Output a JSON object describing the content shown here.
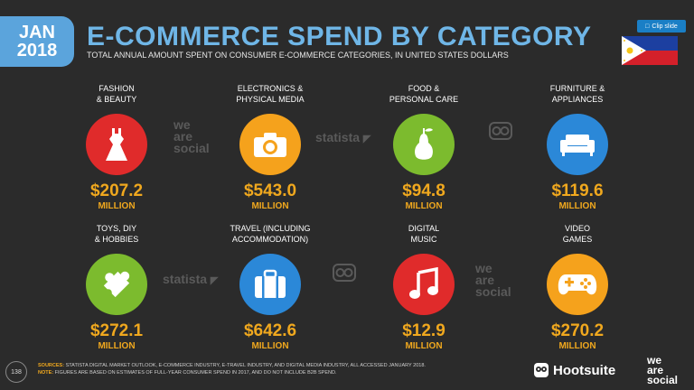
{
  "badge": {
    "month": "JAN",
    "year": "2018",
    "color": "#5ba4dc"
  },
  "title": "E-COMMERCE SPEND BY CATEGORY",
  "subtitle": "TOTAL ANNUAL AMOUNT SPENT ON CONSUMER E-COMMERCE CATEGORIES, IN UNITED STATES DOLLARS",
  "clip_button": "Clip slide",
  "country_flag": "philippines-flag",
  "accent_color": "#f0a81e",
  "categories": [
    {
      "label_1": "FASHION",
      "label_2": "& BEAUTY",
      "value": "$207.2",
      "unit": "MILLION",
      "icon": "dress-icon",
      "color": "#e02b2b"
    },
    {
      "label_1": "ELECTRONICS &",
      "label_2": "PHYSICAL MEDIA",
      "value": "$543.0",
      "unit": "MILLION",
      "icon": "camera-icon",
      "color": "#f5a21c"
    },
    {
      "label_1": "FOOD &",
      "label_2": "PERSONAL CARE",
      "value": "$94.8",
      "unit": "MILLION",
      "icon": "pear-icon",
      "color": "#7cbb2e"
    },
    {
      "label_1": "FURNITURE &",
      "label_2": "APPLIANCES",
      "value": "$119.6",
      "unit": "MILLION",
      "icon": "sofa-icon",
      "color": "#2b88d8"
    },
    {
      "label_1": "TOYS, DIY",
      "label_2": "& HOBBIES",
      "value": "$272.1",
      "unit": "MILLION",
      "icon": "puzzle-icon",
      "color": "#7cbb2e"
    },
    {
      "label_1": "TRAVEL (INCLUDING",
      "label_2": "ACCOMMODATION)",
      "value": "$642.6",
      "unit": "MILLION",
      "icon": "suitcase-icon",
      "color": "#2b88d8"
    },
    {
      "label_1": "DIGITAL",
      "label_2": "MUSIC",
      "value": "$12.9",
      "unit": "MILLION",
      "icon": "music-note-icon",
      "color": "#e02b2b"
    },
    {
      "label_1": "VIDEO",
      "label_2": "GAMES",
      "value": "$270.2",
      "unit": "MILLION",
      "icon": "gamepad-icon",
      "color": "#f5a21c"
    }
  ],
  "watermarks": {
    "we": "we",
    "are": "are",
    "social": "social",
    "statista": "statista"
  },
  "footer": {
    "page_number": "138",
    "sources_label": "SOURCES:",
    "sources_text": "STATISTA DIGITAL MARKET OUTLOOK, E-COMMERCE INDUSTRY, E-TRAVEL INDUSTRY, AND DIGITAL MEDIA INDUSTRY, ALL ACCESSED JANUARY 2018.",
    "note_label": "NOTE:",
    "note_text": "FIGURES ARE BASED ON ESTIMATES OF FULL-YEAR CONSUMER SPEND IN 2017, AND DO NOT INCLUDE B2B SPEND.",
    "hootsuite": "Hootsuite",
    "we": "we",
    "are": "are",
    "social": "social"
  }
}
